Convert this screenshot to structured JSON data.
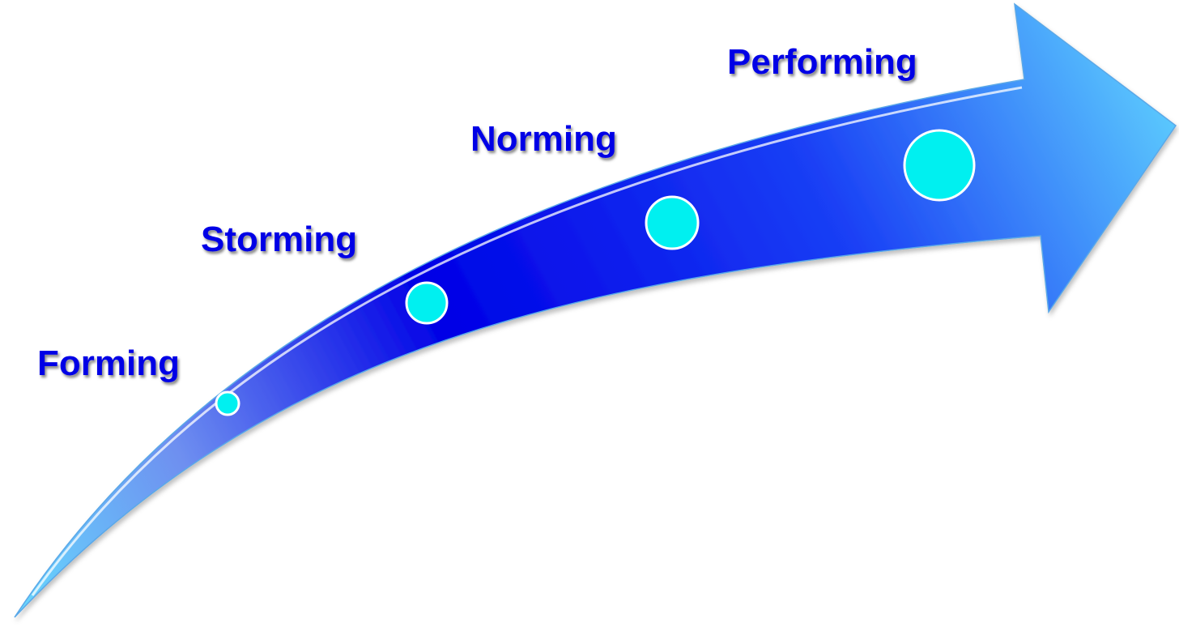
{
  "colors": {
    "arrow_dark": "#0000E6",
    "arrow_light": "#66E0FF",
    "marker_fill": "#00F0F0",
    "marker_stroke": "#FFFFFF",
    "label_text": "#0000E6",
    "label_shadow": "#7A7A7A"
  },
  "stages": [
    {
      "label": "Forming"
    },
    {
      "label": "Storming"
    },
    {
      "label": "Norming"
    },
    {
      "label": "Performing"
    }
  ]
}
